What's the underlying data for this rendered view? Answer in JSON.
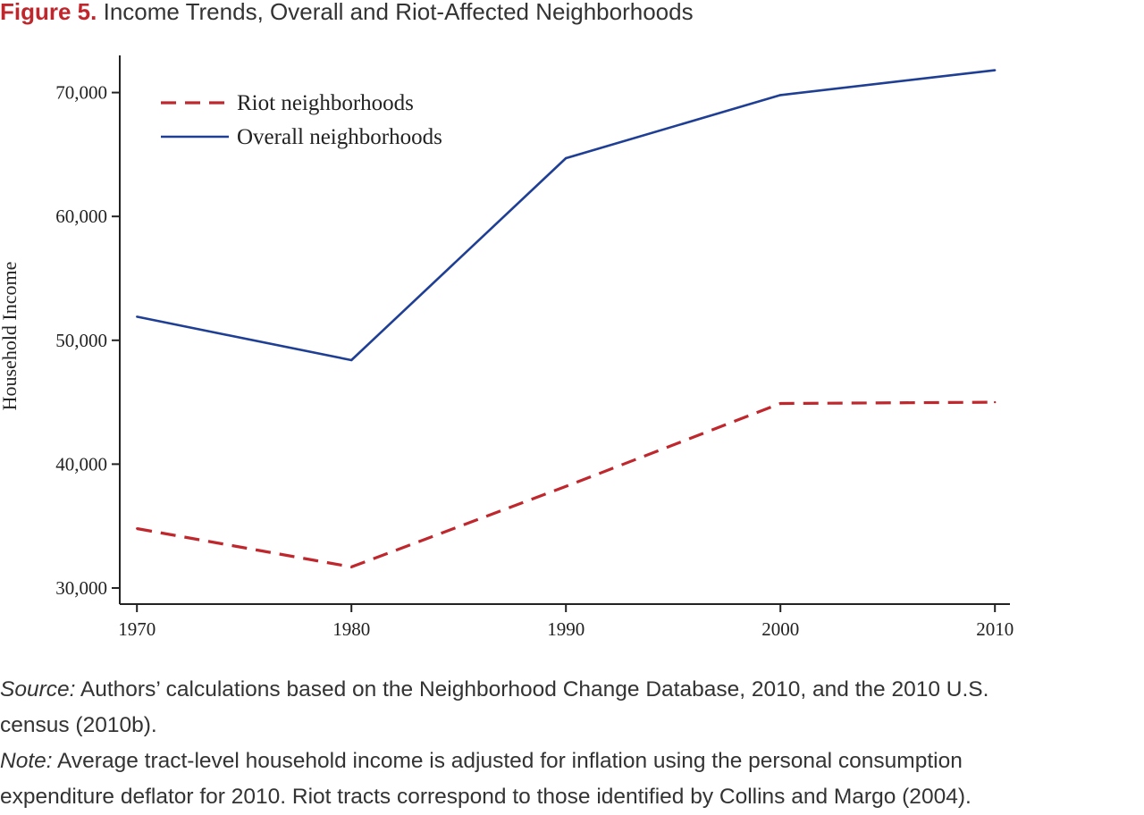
{
  "figure": {
    "label": "Figure 5.",
    "title": "Income Trends, Overall and Riot-Affected Neighborhoods"
  },
  "chart_data": {
    "type": "line",
    "title": "Income Trends, Overall and Riot-Affected Neighborhoods",
    "xlabel": "",
    "ylabel": "Household Income",
    "x": [
      1970,
      1980,
      1990,
      2000,
      2010
    ],
    "x_tick_labels": [
      "1970",
      "1980",
      "1990",
      "2000",
      "2010"
    ],
    "y_ticks": [
      30000,
      40000,
      50000,
      60000,
      70000
    ],
    "y_tick_labels": [
      "30,000",
      "40,000",
      "50,000",
      "60,000",
      "70,000"
    ],
    "xlim": [
      1969.2,
      2010.7
    ],
    "ylim": [
      28700,
      73000
    ],
    "grid": false,
    "legend_position": "top-left",
    "series": [
      {
        "name": "Riot neighborhoods",
        "color": "#c0272d",
        "style": "dashed",
        "values": [
          34800,
          31700,
          38200,
          44900,
          45000
        ]
      },
      {
        "name": "Overall neighborhoods",
        "color": "#1f3f95",
        "style": "solid",
        "values": [
          51900,
          48400,
          64700,
          69800,
          71800
        ]
      }
    ]
  },
  "notes": {
    "source_label": "Source:",
    "source_text": " Authors’ calculations based on the Neighborhood Change Database, 2010, and the 2010 U.S.",
    "source_text_2": "census (2010b).",
    "note_label": "Note:",
    "note_text": " Average tract-level household income is adjusted for inflation using the personal consumption",
    "note_text_2": "expenditure deflator for 2010. Riot tracts correspond to those identified by Collins and Margo (2004)."
  }
}
